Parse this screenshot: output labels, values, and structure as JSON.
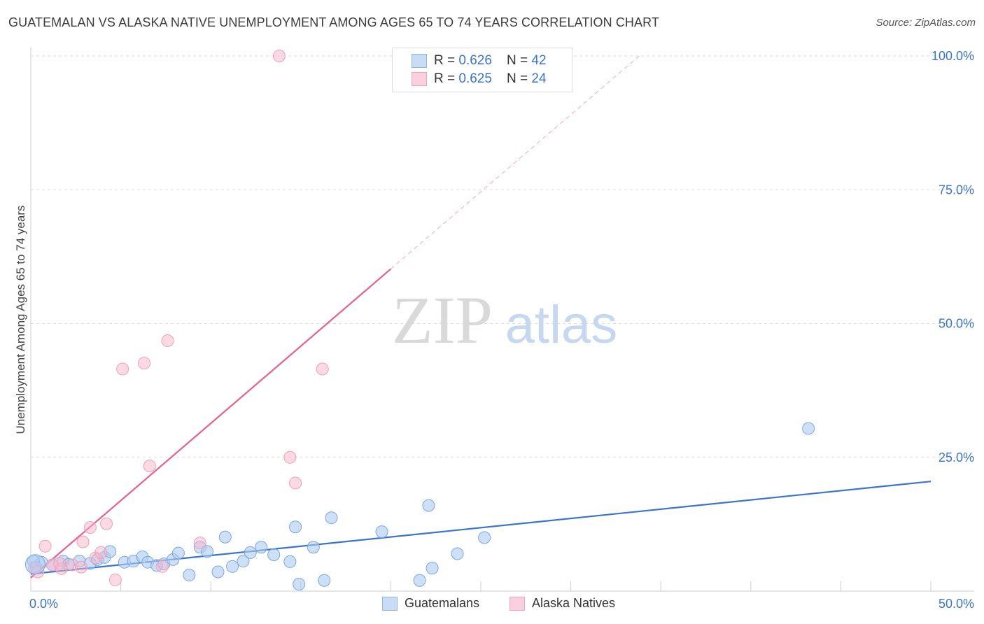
{
  "title": "GUATEMALAN VS ALASKA NATIVE UNEMPLOYMENT AMONG AGES 65 TO 74 YEARS CORRELATION CHART",
  "source": "Source: ZipAtlas.com",
  "legend": {
    "guatemalan": {
      "r_label": "R = ",
      "r_value": "0.626",
      "n_label": "N = ",
      "n_value": "42"
    },
    "alaska": {
      "r_label": "R = ",
      "r_value": "0.625",
      "n_label": "N = ",
      "n_value": "24"
    }
  },
  "watermark": {
    "zip": "ZIP",
    "atlas": "atlas"
  },
  "colors": {
    "blue": "#3a74cf",
    "blue_fill": "#aecbf3",
    "pink": "#e5608f",
    "pink_fill": "#f7b6ca"
  },
  "chart_data": {
    "type": "scatter",
    "title": "GUATEMALAN VS ALASKA NATIVE UNEMPLOYMENT AMONG AGES 65 TO 74 YEARS CORRELATION CHART",
    "xlabel": "",
    "ylabel": "Unemployment Among Ages 65 to 74 years",
    "xlim": [
      0,
      50
    ],
    "ylim": [
      0,
      100
    ],
    "x_tick_labels": [
      "0.0%",
      "50.0%"
    ],
    "y_tick_values": [
      25,
      50,
      75,
      100
    ],
    "y_tick_labels": [
      "25.0%",
      "50.0%",
      "75.0%",
      "100.0%"
    ],
    "series": [
      {
        "name": "Guatemalans",
        "color": "#3a74cf",
        "points": [
          [
            0.3,
            4.5
          ],
          [
            0.6,
            5.4
          ],
          [
            1.2,
            4.9
          ],
          [
            1.8,
            5.6
          ],
          [
            2.1,
            5.0
          ],
          [
            2.7,
            5.6
          ],
          [
            3.3,
            5.2
          ],
          [
            3.7,
            5.9
          ],
          [
            4.1,
            6.3
          ],
          [
            4.4,
            7.4
          ],
          [
            5.2,
            5.4
          ],
          [
            5.7,
            5.6
          ],
          [
            6.2,
            6.4
          ],
          [
            6.5,
            5.4
          ],
          [
            7.0,
            4.8
          ],
          [
            7.4,
            5.1
          ],
          [
            7.9,
            5.9
          ],
          [
            8.2,
            7.1
          ],
          [
            8.8,
            3.0
          ],
          [
            9.4,
            8.2
          ],
          [
            9.8,
            7.4
          ],
          [
            10.4,
            3.6
          ],
          [
            10.8,
            10.1
          ],
          [
            11.2,
            4.6
          ],
          [
            11.8,
            5.6
          ],
          [
            12.2,
            7.2
          ],
          [
            12.8,
            8.2
          ],
          [
            13.5,
            6.8
          ],
          [
            14.4,
            5.5
          ],
          [
            14.7,
            12.0
          ],
          [
            14.9,
            1.3
          ],
          [
            15.7,
            8.2
          ],
          [
            16.3,
            2.0
          ],
          [
            16.7,
            13.7
          ],
          [
            19.5,
            11.1
          ],
          [
            21.6,
            2.0
          ],
          [
            22.1,
            16.0
          ],
          [
            22.3,
            4.3
          ],
          [
            23.7,
            7.0
          ],
          [
            25.2,
            10.0
          ],
          [
            43.2,
            30.4
          ],
          [
            0.15,
            5.6
          ]
        ]
      },
      {
        "name": "Alaska Natives",
        "color": "#e5608f",
        "points": [
          [
            0.4,
            3.6
          ],
          [
            0.8,
            8.4
          ],
          [
            1.2,
            4.9
          ],
          [
            1.7,
            4.2
          ],
          [
            2.3,
            4.9
          ],
          [
            2.8,
            4.5
          ],
          [
            2.9,
            9.2
          ],
          [
            3.3,
            11.9
          ],
          [
            3.6,
            6.2
          ],
          [
            3.9,
            7.2
          ],
          [
            4.2,
            12.6
          ],
          [
            4.7,
            2.1
          ],
          [
            5.1,
            41.5
          ],
          [
            6.3,
            42.6
          ],
          [
            6.6,
            23.4
          ],
          [
            7.3,
            4.6
          ],
          [
            7.6,
            46.8
          ],
          [
            9.4,
            9.0
          ],
          [
            13.8,
            100.0
          ],
          [
            14.4,
            25.0
          ],
          [
            14.7,
            20.2
          ],
          [
            16.2,
            41.5
          ],
          [
            0.2,
            4.4
          ],
          [
            1.6,
            5.2
          ]
        ]
      }
    ],
    "trendlines": [
      {
        "series": "Guatemalans",
        "x_start": 0,
        "y_start": 3.2,
        "x_end": 50,
        "y_end": 20.5
      },
      {
        "series": "Alaska Natives",
        "x_start": 0,
        "y_start": 2.5,
        "x_end": 20,
        "y_end": 60.2,
        "dashed_to_x": 33.8,
        "dashed_to_y": 100
      }
    ]
  },
  "bottom_legend": [
    "Guatemalans",
    "Alaska Natives"
  ]
}
